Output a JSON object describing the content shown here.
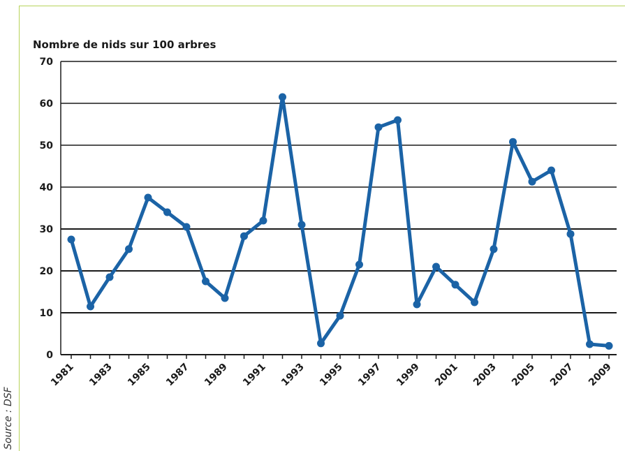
{
  "chart_data": {
    "type": "line",
    "ylabel": "Nombre de nids sur 100 arbres",
    "xlabel": "",
    "source": "Source : DSF",
    "ylim": [
      0,
      70
    ],
    "yticks": [
      "0",
      "10",
      "20",
      "30",
      "40",
      "50",
      "60",
      "70"
    ],
    "xticks": [
      "1981",
      "1983",
      "1985",
      "1987",
      "1989",
      "1991",
      "1993",
      "1995",
      "1997",
      "1999",
      "2001",
      "2003",
      "2005",
      "2007",
      "2009"
    ],
    "grid": true,
    "colors": {
      "line": "#1b63a6",
      "grid": "#1a1a1a"
    },
    "series": [
      {
        "x": [
          1981,
          1982,
          1983,
          1984,
          1985,
          1986,
          1987,
          1988,
          1989,
          1990,
          1991,
          1992,
          1993,
          1994,
          1995,
          1996,
          1997,
          1998,
          1999,
          2000,
          2001,
          2002,
          2003,
          2004,
          2005,
          2006,
          2007,
          2008,
          2009
        ],
        "values": [
          27.5,
          11.5,
          18.5,
          25.2,
          37.5,
          34,
          30.5,
          17.5,
          13.5,
          28.3,
          32,
          61.5,
          31,
          2.7,
          9.3,
          21.5,
          54.3,
          56,
          12,
          21,
          16.7,
          12.5,
          25.2,
          50.8,
          41.3,
          44,
          28.8,
          2.5,
          2.1
        ]
      }
    ]
  }
}
